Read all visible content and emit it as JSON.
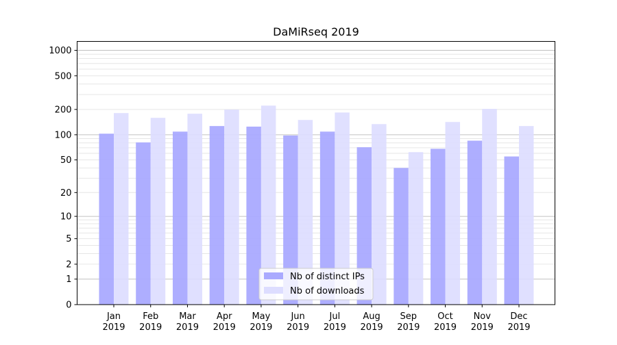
{
  "chart_data": {
    "type": "bar",
    "title": "DaMiRseq 2019",
    "xlabel": "",
    "ylabel": "",
    "y_scale": "log(1+y)",
    "ylim": [
      0,
      1250
    ],
    "yticks": [
      0,
      1,
      2,
      5,
      10,
      20,
      50,
      100,
      200,
      500,
      1000
    ],
    "grid": true,
    "legend_position": "bottom-center",
    "categories": [
      "Jan\n2019",
      "Feb\n2019",
      "Mar\n2019",
      "Apr\n2019",
      "May\n2019",
      "Jun\n2019",
      "Jul\n2019",
      "Aug\n2019",
      "Sep\n2019",
      "Oct\n2019",
      "Nov\n2019",
      "Dec\n2019"
    ],
    "series": [
      {
        "name": "Nb of distinct IPs",
        "color": "#aaaaff",
        "values": [
          103,
          81,
          109,
          127,
          125,
          98,
          109,
          71,
          40,
          68,
          85,
          55
        ]
      },
      {
        "name": "Nb of downloads",
        "color": "#ddddff",
        "values": [
          181,
          159,
          178,
          199,
          222,
          150,
          184,
          134,
          62,
          142,
          203,
          127
        ]
      }
    ]
  }
}
